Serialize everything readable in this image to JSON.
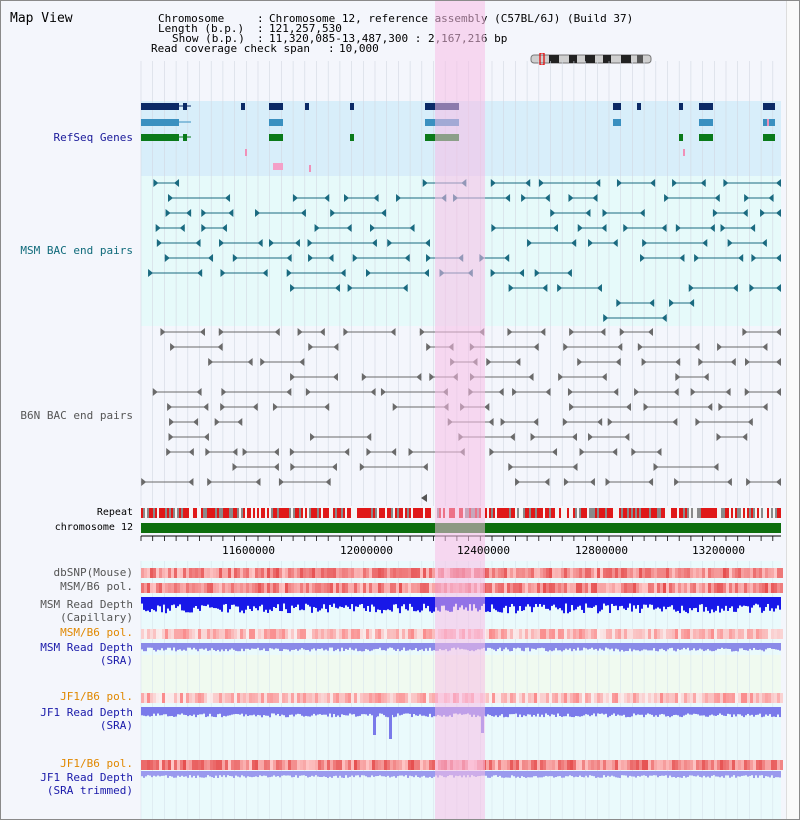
{
  "title": "Map View",
  "header": {
    "chromosome_key": "Chromosome",
    "chromosome_val": "Chromosome 12, reference assembly (C57BL/6J) (Build 37)",
    "length_key": "Length (b.p.)",
    "length_val": "121,257,530",
    "show_key": "Show (b.p.)",
    "show_val": "11,320,085-13,487,300 : 2,167,216 bp",
    "coverage_key": "Read coverage check span",
    "coverage_val": "10,000",
    "sep": ":"
  },
  "tracks": {
    "refseq": "RefSeq Genes",
    "msm_bac": "MSM BAC end pairs",
    "b6n_bac": "B6N BAC end pairs",
    "repeat": "Repeat",
    "chromosome": "chromosome 12",
    "dbsnp": "dbSNP(Mouse)",
    "msm_b6_pol_1": "MSM/B6 pol.",
    "msm_depth_cap_1": "MSM Read Depth",
    "msm_depth_cap_2": "(Capillary)",
    "msm_b6_pol_2": "MSM/B6 pol.",
    "msm_depth_sra_1": "MSM Read Depth",
    "msm_depth_sra_2": "(SRA)",
    "jf1_b6_pol_1": "JF1/B6 pol.",
    "jf1_depth_sra_1": "JF1 Read Depth",
    "jf1_depth_sra_2": "(SRA)",
    "jf1_b6_pol_2": "JF1/B6 pol.",
    "jf1_depth_trim_1": "JF1 Read Depth",
    "jf1_depth_trim_2": "(SRA trimmed)"
  },
  "axis_ticks": [
    "11600000",
    "12000000",
    "12400000",
    "12800000",
    "13200000"
  ],
  "colors": {
    "refseq_label": "#1a1a9a",
    "msm_label": "#0f6a7a",
    "b6n_label": "#555555",
    "orange_label": "#e08800",
    "blue_label": "#1a1aaa",
    "highlight": "#f8d6ee",
    "gene_band": "#d8eefa",
    "msm_band": "#e6fafa",
    "chromosome_bar": "#0d6e0d"
  }
}
